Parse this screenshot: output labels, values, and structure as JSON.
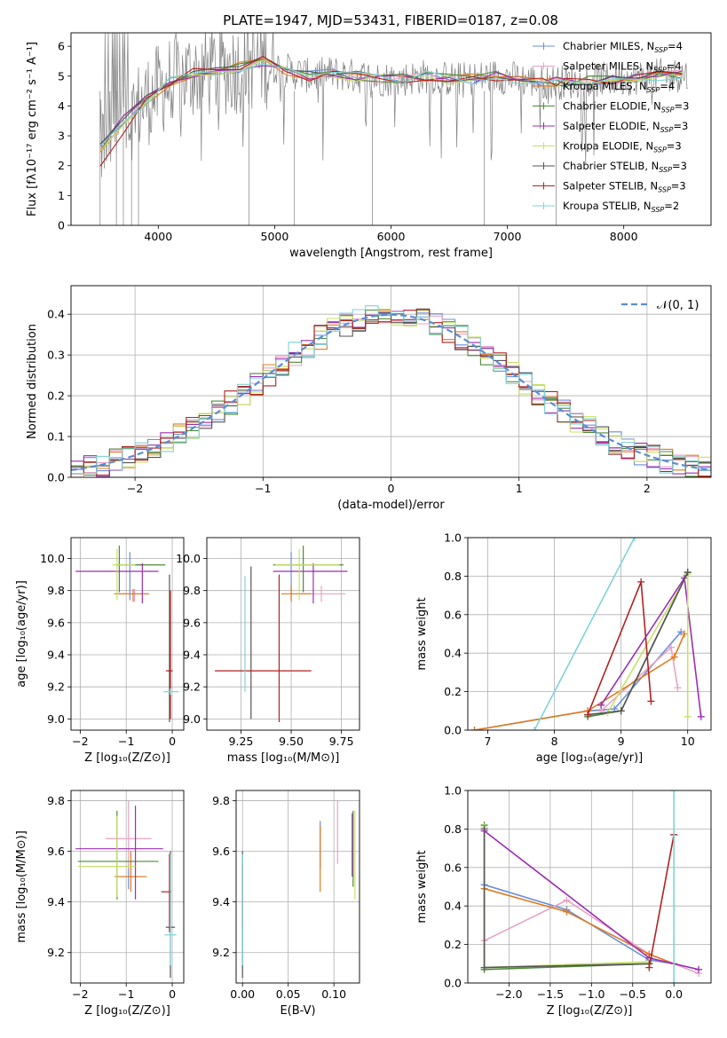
{
  "figure": {
    "title": "PLATE=1947, MJD=53431, FIBERID=0187, z=0.08"
  },
  "colors": {
    "data": "#808080",
    "series": [
      "#6a8fd8",
      "#e8a3c4",
      "#e07b20",
      "#4d8a3a",
      "#9b2fb0",
      "#c8e06a",
      "#555555",
      "#b22222",
      "#7fd4d8"
    ],
    "gaussian": "#5b8dd6",
    "grid": "#b0b0b0"
  },
  "legend": [
    {
      "label": "Chabrier MILES, N",
      "sub": "SSP",
      "tail": "=4"
    },
    {
      "label": "Salpeter MILES, N",
      "sub": "SSP",
      "tail": "=4"
    },
    {
      "label": "Kroupa MILES, N",
      "sub": "SSP",
      "tail": "=4"
    },
    {
      "label": "Chabrier ELODIE, N",
      "sub": "SSP",
      "tail": "=3"
    },
    {
      "label": "Salpeter ELODIE, N",
      "sub": "SSP",
      "tail": "=3"
    },
    {
      "label": "Kroupa ELODIE, N",
      "sub": "SSP",
      "tail": "=3"
    },
    {
      "label": "Chabrier STELIB, N",
      "sub": "SSP",
      "tail": "=3"
    },
    {
      "label": "Salpeter STELIB, N",
      "sub": "SSP",
      "tail": "=3"
    },
    {
      "label": "Kroupa STELIB, N",
      "sub": "SSP",
      "tail": "=2"
    }
  ],
  "chart_data": [
    {
      "id": "spectrum",
      "type": "line",
      "xlabel": "wavelength [Angstrom, rest frame]",
      "ylabel": "Flux [fλ10⁻¹⁷ erg cm⁻² s⁻¹ A⁻¹]",
      "xlim": [
        3250,
        8750
      ],
      "ylim": [
        0,
        6.45
      ],
      "xticks": [
        4000,
        5000,
        6000,
        7000,
        8000
      ],
      "yticks": [
        0,
        1,
        2,
        3,
        4,
        5,
        6
      ],
      "x": [
        3500,
        3700,
        3900,
        4100,
        4300,
        4500,
        4700,
        4900,
        5100,
        5300,
        5500,
        5700,
        5900,
        6100,
        6300,
        6500,
        6700,
        6900,
        7100,
        7300,
        7420
      ],
      "model_flux": [
        2.6,
        3.5,
        4.2,
        4.8,
        5.1,
        5.2,
        5.3,
        5.5,
        5.2,
        5.0,
        5.1,
        5.0,
        4.9,
        4.9,
        5.0,
        4.9,
        4.9,
        5.0,
        4.9,
        4.8,
        4.8
      ],
      "models_extended_to": 8550,
      "model_flux_extended": [
        4.8,
        4.85,
        4.9,
        4.95,
        5.0,
        5.05
      ],
      "model_flux_extended_x": [
        7500,
        7700,
        7900,
        8100,
        8300,
        8500
      ]
    },
    {
      "id": "residuals",
      "type": "histogram",
      "xlabel": "(data-model)/error",
      "ylabel": "Normed distribution",
      "xlim": [
        -2.5,
        2.5
      ],
      "ylim": [
        0,
        0.47
      ],
      "xticks": [
        -2,
        -1,
        0,
        1,
        2
      ],
      "yticks": [
        0.0,
        0.1,
        0.2,
        0.3,
        0.4
      ],
      "legend": "𝒩(0, 1)",
      "bin_width": 0.1
    },
    {
      "id": "age_vs_Z",
      "type": "errorbar",
      "xlabel": "Z [log₁₀(Z/Z⊙)]",
      "ylabel": "age  [log₁₀(age/yr)]",
      "xlim": [
        -2.2,
        0.25
      ],
      "ylim": [
        8.93,
        10.13
      ],
      "xticks": [
        -2,
        -1,
        0
      ],
      "yticks": [
        9.0,
        9.2,
        9.4,
        9.6,
        9.8,
        10.0
      ],
      "points": [
        {
          "x": -0.92,
          "xerr": [
            0.3,
            0.3
          ],
          "y": 9.96,
          "yerr": [
            0.22,
            0.08
          ]
        },
        {
          "x": -0.82,
          "xerr": [
            0.45,
            0.3
          ],
          "y": 9.78,
          "yerr": [
            0.05,
            0.03
          ]
        },
        {
          "x": -0.85,
          "xerr": [
            0.4,
            0.35
          ],
          "y": 9.78,
          "yerr": [
            0.05,
            0.03
          ]
        },
        {
          "x": -1.15,
          "xerr": [
            0.05,
            1.0
          ],
          "y": 9.96,
          "yerr": [
            0.17,
            0.12
          ]
        },
        {
          "x": -0.65,
          "xerr": [
            1.45,
            0.35
          ],
          "y": 9.92,
          "yerr": [
            0.2,
            0.05
          ]
        },
        {
          "x": -1.2,
          "xerr": [
            0.1,
            0.4
          ],
          "y": 9.96,
          "yerr": [
            0.22,
            0.1
          ]
        },
        {
          "x": -0.06,
          "xerr": [
            0.04,
            0.04
          ],
          "y": 9.3,
          "yerr": [
            0.32,
            0.6
          ]
        },
        {
          "x": -0.04,
          "xerr": [
            0.1,
            0.05
          ],
          "y": 9.3,
          "yerr": [
            0.3,
            0.5
          ]
        },
        {
          "x": -0.04,
          "xerr": [
            0.15,
            0.18
          ],
          "y": 9.17,
          "yerr": [
            0.02,
            0.02
          ]
        }
      ]
    },
    {
      "id": "age_vs_mass",
      "type": "errorbar",
      "xlabel": "mass [log₁₀(M/M⊙)]",
      "ylabel": "",
      "xlim": [
        9.08,
        9.84
      ],
      "ylim": [
        8.93,
        10.13
      ],
      "xticks": [
        9.25,
        9.5,
        9.75
      ],
      "yticks": [
        9.0,
        9.2,
        9.4,
        9.6,
        9.8,
        10.0
      ],
      "points": [
        {
          "x": 9.5,
          "xerr": [
            0.05,
            0.05
          ],
          "y": 9.96,
          "yerr": [
            0.22,
            0.08
          ]
        },
        {
          "x": 9.65,
          "xerr": [
            0.12,
            0.12
          ],
          "y": 9.78,
          "yerr": [
            0.05,
            0.05
          ]
        },
        {
          "x": 9.5,
          "xerr": [
            0.05,
            0.1
          ],
          "y": 9.78,
          "yerr": [
            0.05,
            0.05
          ]
        },
        {
          "x": 9.56,
          "xerr": [
            0.15,
            0.2
          ],
          "y": 9.96,
          "yerr": [
            0.17,
            0.12
          ]
        },
        {
          "x": 9.61,
          "xerr": [
            0.2,
            0.17
          ],
          "y": 9.92,
          "yerr": [
            0.2,
            0.05
          ]
        },
        {
          "x": 9.54,
          "xerr": [
            0.12,
            0.2
          ],
          "y": 9.96,
          "yerr": [
            0.22,
            0.1
          ]
        },
        {
          "x": 9.3,
          "xerr": [
            0.0,
            0.0
          ],
          "y": 9.3,
          "yerr": [
            0.3,
            0.65
          ]
        },
        {
          "x": 9.44,
          "xerr": [
            0.32,
            0.16
          ],
          "y": 9.3,
          "yerr": [
            0.32,
            0.6
          ]
        },
        {
          "x": 9.27,
          "xerr": [
            0.0,
            0.0
          ],
          "y": 9.17,
          "yerr": [
            0.0,
            0.72
          ]
        }
      ]
    },
    {
      "id": "weight_vs_age",
      "type": "line",
      "xlabel": "age  [log₁₀(age/yr)]",
      "ylabel": "mass weight",
      "xlim": [
        6.7,
        10.35
      ],
      "ylim": [
        0,
        1
      ],
      "xticks": [
        7,
        8,
        9,
        10
      ],
      "yticks": [
        0.0,
        0.2,
        0.4,
        0.6,
        0.8,
        1.0
      ],
      "series": [
        {
          "x": [
            6.8,
            8.5,
            8.9,
            9.9
          ],
          "y": [
            0.0,
            0.1,
            0.11,
            0.51
          ]
        },
        {
          "x": [
            8.7,
            9.75,
            9.85
          ],
          "y": [
            0.1,
            0.43,
            0.22
          ]
        },
        {
          "x": [
            6.8,
            8.5,
            9.8,
            9.95
          ],
          "y": [
            0.0,
            0.1,
            0.38,
            0.5
          ]
        },
        {
          "x": [
            8.5,
            9.0,
            10.0
          ],
          "y": [
            0.07,
            0.1,
            0.82
          ]
        },
        {
          "x": [
            8.7,
            9.95,
            10.2
          ],
          "y": [
            0.13,
            0.79,
            0.07
          ]
        },
        {
          "x": [
            8.8,
            10.0,
            10.0
          ],
          "y": [
            0.09,
            0.81,
            0.07
          ]
        },
        {
          "x": [
            8.5,
            9.0,
            10.0
          ],
          "y": [
            0.08,
            0.1,
            0.82
          ]
        },
        {
          "x": [
            8.5,
            9.3,
            9.45
          ],
          "y": [
            0.08,
            0.77,
            0.15
          ]
        },
        {
          "x": [
            7.7,
            9.2
          ],
          "y": [
            0.0,
            1.0
          ]
        }
      ]
    },
    {
      "id": "mass_vs_Z",
      "type": "errorbar",
      "xlabel": "Z [log₁₀(Z/Z⊙)]",
      "ylabel": "mass [log₁₀(M/M⊙)]",
      "xlim": [
        -2.2,
        0.25
      ],
      "ylim": [
        9.08,
        9.84
      ],
      "xticks": [
        -2,
        -1,
        0
      ],
      "yticks": [
        9.2,
        9.4,
        9.6,
        9.8
      ],
      "points": [
        {
          "x": -0.95,
          "xerr": [
            0.3,
            0.3
          ],
          "y": 9.5,
          "yerr": [
            0.05,
            0.05
          ]
        },
        {
          "x": -0.95,
          "xerr": [
            0.5,
            0.5
          ],
          "y": 9.65,
          "yerr": [
            0.12,
            0.15
          ]
        },
        {
          "x": -0.9,
          "xerr": [
            0.35,
            0.35
          ],
          "y": 9.5,
          "yerr": [
            0.06,
            0.1
          ]
        },
        {
          "x": -1.2,
          "xerr": [
            0.85,
            0.9
          ],
          "y": 9.56,
          "yerr": [
            0.15,
            0.2
          ]
        },
        {
          "x": -0.8,
          "xerr": [
            1.3,
            0.6
          ],
          "y": 9.61,
          "yerr": [
            0.2,
            0.17
          ]
        },
        {
          "x": -1.2,
          "xerr": [
            0.85,
            0.4
          ],
          "y": 9.54,
          "yerr": [
            0.12,
            0.2
          ]
        },
        {
          "x": -0.04,
          "xerr": [
            0.1,
            0.1
          ],
          "y": 9.3,
          "yerr": [
            0.2,
            0.3
          ]
        },
        {
          "x": -0.06,
          "xerr": [
            0.18,
            0.04
          ],
          "y": 9.44,
          "yerr": [
            0.16,
            0.15
          ]
        },
        {
          "x": -0.04,
          "xerr": [
            0.13,
            0.13
          ],
          "y": 9.27,
          "yerr": [
            0.12,
            0.32
          ]
        }
      ]
    },
    {
      "id": "mass_vs_ebv",
      "type": "errorbar",
      "xlabel": "E(B-V)",
      "ylabel": "",
      "xlim": [
        -0.007,
        0.128
      ],
      "ylim": [
        9.08,
        9.84
      ],
      "xticks": [
        0.0,
        0.05,
        0.1
      ],
      "yticks": [
        9.2,
        9.4,
        9.6,
        9.8
      ],
      "points": [
        {
          "x": 0.085,
          "xerr": [
            0,
            0
          ],
          "y": 9.65,
          "yerr": [
            0.12,
            0.07
          ]
        },
        {
          "x": 0.104,
          "xerr": [
            0,
            0
          ],
          "y": 9.65,
          "yerr": [
            0.1,
            0.15
          ]
        },
        {
          "x": 0.085,
          "xerr": [
            0,
            0
          ],
          "y": 9.5,
          "yerr": [
            0.06,
            0.2
          ]
        },
        {
          "x": 0.121,
          "xerr": [
            0,
            0
          ],
          "y": 9.56,
          "yerr": [
            0.1,
            0.2
          ]
        },
        {
          "x": 0.12,
          "xerr": [
            0,
            0
          ],
          "y": 9.6,
          "yerr": [
            0.1,
            0.15
          ]
        },
        {
          "x": 0.123,
          "xerr": [
            0,
            0
          ],
          "y": 9.54,
          "yerr": [
            0.13,
            0.22
          ]
        },
        {
          "x": 0.0,
          "xerr": [
            0,
            0
          ],
          "y": 9.3,
          "yerr": [
            0.2,
            0.3
          ]
        },
        {
          "x": 0.0,
          "xerr": [
            0,
            0
          ],
          "y": 9.4,
          "yerr": [
            0.1,
            0.15
          ]
        },
        {
          "x": 0.0,
          "xerr": [
            0,
            0
          ],
          "y": 9.27,
          "yerr": [
            0.12,
            0.32
          ]
        }
      ]
    },
    {
      "id": "weight_vs_Z",
      "type": "line",
      "xlabel": "Z [log₁₀(Z/Z⊙)]",
      "ylabel": "mass weight",
      "xlim": [
        -2.5,
        0.45
      ],
      "ylim": [
        0,
        1
      ],
      "xticks": [
        -2.0,
        -1.5,
        -1.0,
        -0.5,
        0.0
      ],
      "yticks": [
        0.0,
        0.2,
        0.4,
        0.6,
        0.8,
        1.0
      ],
      "series": [
        {
          "x": [
            -2.3,
            -1.3,
            -0.3,
            0.0
          ],
          "y": [
            0.51,
            0.38,
            0.12,
            0.1
          ]
        },
        {
          "x": [
            -2.3,
            -1.3,
            -0.3,
            0.3
          ],
          "y": [
            0.22,
            0.43,
            0.15,
            0.05
          ]
        },
        {
          "x": [
            -2.3,
            -1.3,
            -0.3,
            0.0
          ],
          "y": [
            0.49,
            0.37,
            0.15,
            0.1
          ]
        },
        {
          "x": [
            -2.3,
            -2.3,
            -0.3
          ],
          "y": [
            0.82,
            0.07,
            0.1
          ]
        },
        {
          "x": [
            -2.3,
            -0.3,
            0.3
          ],
          "y": [
            0.79,
            0.13,
            0.07
          ]
        },
        {
          "x": [
            -2.3,
            -2.3,
            -0.3
          ],
          "y": [
            0.81,
            0.08,
            0.11
          ]
        },
        {
          "x": [
            -2.3,
            -2.3,
            -0.3
          ],
          "y": [
            0.8,
            0.08,
            0.1
          ]
        },
        {
          "x": [
            -0.3,
            0.0,
            0.0
          ],
          "y": [
            0.08,
            0.77,
            0.77
          ]
        },
        {
          "x": [
            0.0,
            0.0
          ],
          "y": [
            0.0,
            1.0
          ]
        }
      ]
    }
  ]
}
